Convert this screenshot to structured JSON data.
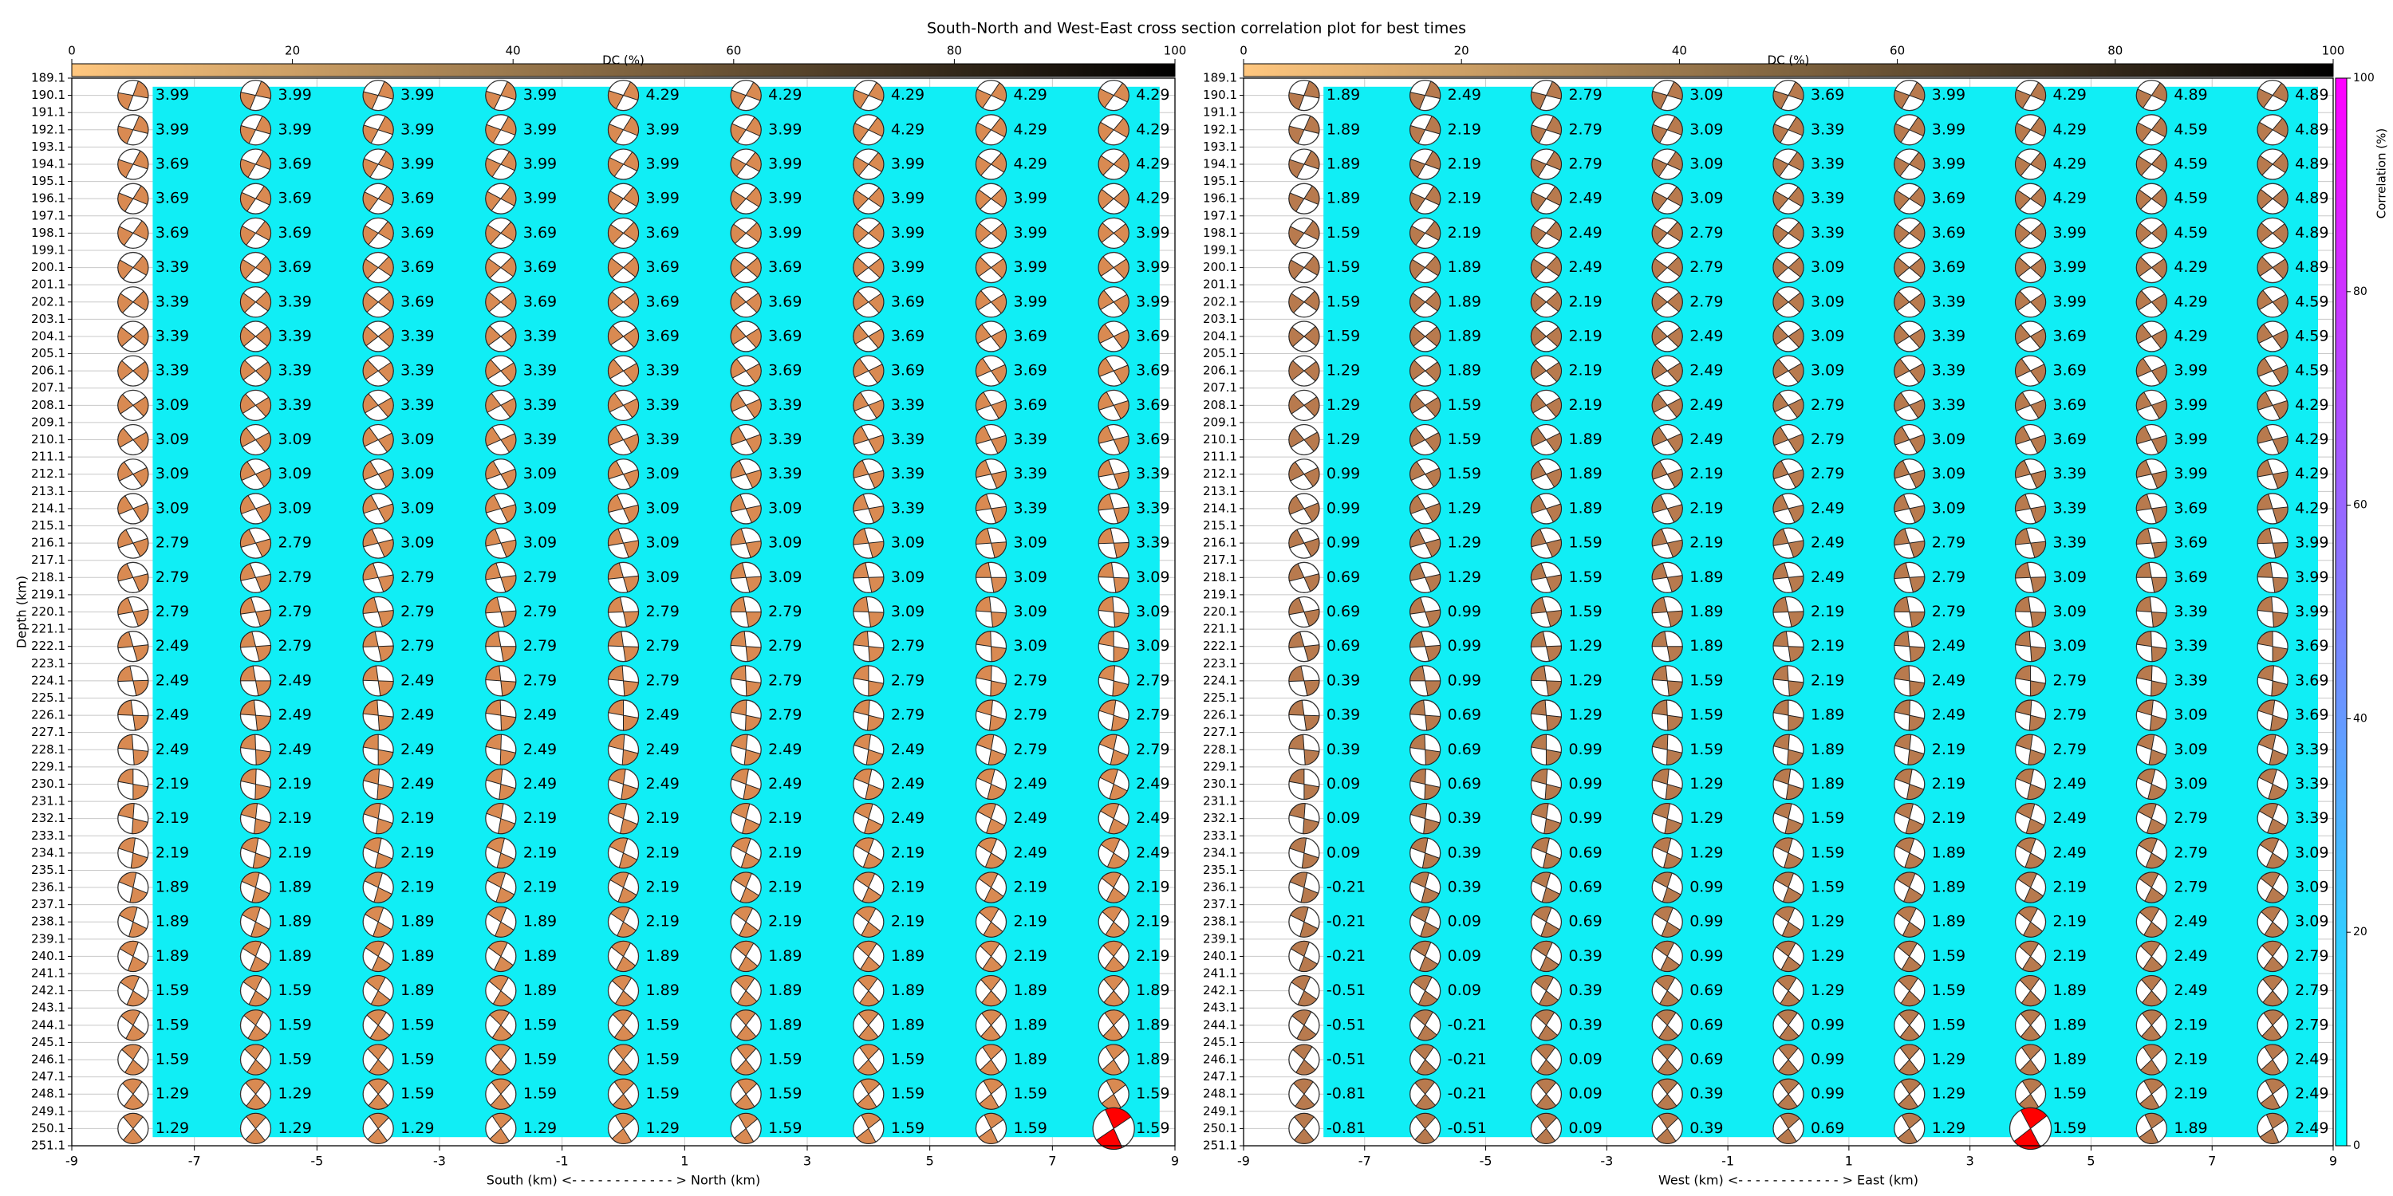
{
  "title": "South-North and West-East cross section correlation plot for best times",
  "correlation_colorbar": {
    "label": "Correlation (%)",
    "lim": [
      0,
      100
    ],
    "ticks": [
      0,
      20,
      40,
      60,
      80,
      100
    ],
    "colors": [
      "#00ffff",
      "#ff00ff"
    ]
  },
  "chart_data": [
    {
      "type": "cross_section",
      "x_label": "South (km) <- - - - - - - - - - - - > North (km)",
      "y_label": "Depth (km)",
      "xlim": [
        -9,
        9
      ],
      "xticks": [
        -9,
        -7,
        -5,
        -3,
        -1,
        1,
        3,
        5,
        7,
        9
      ],
      "ylim": [
        189.1,
        251.1
      ],
      "y_inverted": true,
      "yticks": [
        189.1,
        190.1,
        191.1,
        192.1,
        193.1,
        194.1,
        195.1,
        196.1,
        197.1,
        198.1,
        199.1,
        200.1,
        201.1,
        202.1,
        203.1,
        204.1,
        205.1,
        206.1,
        207.1,
        208.1,
        209.1,
        210.1,
        211.1,
        212.1,
        213.1,
        214.1,
        215.1,
        216.1,
        217.1,
        218.1,
        219.1,
        220.1,
        221.1,
        222.1,
        223.1,
        224.1,
        225.1,
        226.1,
        227.1,
        228.1,
        229.1,
        230.1,
        231.1,
        232.1,
        233.1,
        234.1,
        235.1,
        236.1,
        237.1,
        238.1,
        239.1,
        240.1,
        241.1,
        242.1,
        243.1,
        244.1,
        245.1,
        246.1,
        247.1,
        248.1,
        249.1,
        250.1,
        251.1
      ],
      "grid": true,
      "field_color": "#10eef5",
      "ball_color": "#d98a52",
      "best_color": "#ff0000",
      "best": {
        "x": 8,
        "depth": 250.1
      },
      "dc_colorbar": {
        "label": "DC (%)",
        "lim": [
          0,
          100
        ],
        "ticks": [
          0,
          20,
          40,
          60,
          80,
          100
        ],
        "colors": [
          "#ffc77f",
          "#000000"
        ]
      },
      "columns": [
        -8,
        -6,
        -4,
        -2,
        0,
        2,
        4,
        6,
        8
      ],
      "depths": [
        190.1,
        192.1,
        194.1,
        196.1,
        198.1,
        200.1,
        202.1,
        204.1,
        206.1,
        208.1,
        210.1,
        212.1,
        214.1,
        216.1,
        218.1,
        220.1,
        222.1,
        224.1,
        226.1,
        228.1,
        230.1,
        232.1,
        234.1,
        236.1,
        238.1,
        240.1,
        242.1,
        244.1,
        246.1,
        248.1,
        250.1
      ],
      "times": [
        [
          3.99,
          3.99,
          3.99,
          3.99,
          4.29,
          4.29,
          4.29,
          4.29,
          4.29
        ],
        [
          3.99,
          3.99,
          3.99,
          3.99,
          3.99,
          3.99,
          4.29,
          4.29,
          4.29
        ],
        [
          3.69,
          3.69,
          3.99,
          3.99,
          3.99,
          3.99,
          3.99,
          4.29,
          4.29
        ],
        [
          3.69,
          3.69,
          3.69,
          3.99,
          3.99,
          3.99,
          3.99,
          3.99,
          4.29
        ],
        [
          3.69,
          3.69,
          3.69,
          3.69,
          3.69,
          3.99,
          3.99,
          3.99,
          3.99
        ],
        [
          3.39,
          3.69,
          3.69,
          3.69,
          3.69,
          3.69,
          3.99,
          3.99,
          3.99
        ],
        [
          3.39,
          3.39,
          3.69,
          3.69,
          3.69,
          3.69,
          3.69,
          3.99,
          3.99
        ],
        [
          3.39,
          3.39,
          3.39,
          3.39,
          3.69,
          3.69,
          3.69,
          3.69,
          3.69
        ],
        [
          3.39,
          3.39,
          3.39,
          3.39,
          3.39,
          3.69,
          3.69,
          3.69,
          3.69
        ],
        [
          3.09,
          3.39,
          3.39,
          3.39,
          3.39,
          3.39,
          3.39,
          3.69,
          3.69
        ],
        [
          3.09,
          3.09,
          3.09,
          3.39,
          3.39,
          3.39,
          3.39,
          3.39,
          3.69
        ],
        [
          3.09,
          3.09,
          3.09,
          3.09,
          3.09,
          3.39,
          3.39,
          3.39,
          3.39
        ],
        [
          3.09,
          3.09,
          3.09,
          3.09,
          3.09,
          3.09,
          3.39,
          3.39,
          3.39
        ],
        [
          2.79,
          2.79,
          3.09,
          3.09,
          3.09,
          3.09,
          3.09,
          3.09,
          3.39
        ],
        [
          2.79,
          2.79,
          2.79,
          2.79,
          3.09,
          3.09,
          3.09,
          3.09,
          3.09
        ],
        [
          2.79,
          2.79,
          2.79,
          2.79,
          2.79,
          2.79,
          3.09,
          3.09,
          3.09
        ],
        [
          2.49,
          2.79,
          2.79,
          2.79,
          2.79,
          2.79,
          2.79,
          3.09,
          3.09
        ],
        [
          2.49,
          2.49,
          2.49,
          2.79,
          2.79,
          2.79,
          2.79,
          2.79,
          2.79
        ],
        [
          2.49,
          2.49,
          2.49,
          2.49,
          2.49,
          2.79,
          2.79,
          2.79,
          2.79
        ],
        [
          2.49,
          2.49,
          2.49,
          2.49,
          2.49,
          2.49,
          2.49,
          2.79,
          2.79
        ],
        [
          2.19,
          2.19,
          2.49,
          2.49,
          2.49,
          2.49,
          2.49,
          2.49,
          2.49
        ],
        [
          2.19,
          2.19,
          2.19,
          2.19,
          2.19,
          2.19,
          2.49,
          2.49,
          2.49
        ],
        [
          2.19,
          2.19,
          2.19,
          2.19,
          2.19,
          2.19,
          2.19,
          2.49,
          2.49
        ],
        [
          1.89,
          1.89,
          2.19,
          2.19,
          2.19,
          2.19,
          2.19,
          2.19,
          2.19
        ],
        [
          1.89,
          1.89,
          1.89,
          1.89,
          2.19,
          2.19,
          2.19,
          2.19,
          2.19
        ],
        [
          1.89,
          1.89,
          1.89,
          1.89,
          1.89,
          1.89,
          1.89,
          2.19,
          2.19
        ],
        [
          1.59,
          1.59,
          1.89,
          1.89,
          1.89,
          1.89,
          1.89,
          1.89,
          1.89
        ],
        [
          1.59,
          1.59,
          1.59,
          1.59,
          1.59,
          1.89,
          1.89,
          1.89,
          1.89
        ],
        [
          1.59,
          1.59,
          1.59,
          1.59,
          1.59,
          1.59,
          1.59,
          1.89,
          1.89
        ],
        [
          1.29,
          1.29,
          1.59,
          1.59,
          1.59,
          1.59,
          1.59,
          1.59,
          1.59
        ],
        [
          1.29,
          1.29,
          1.29,
          1.29,
          1.29,
          1.59,
          1.59,
          1.59,
          1.59
        ]
      ]
    },
    {
      "type": "cross_section",
      "x_label": "West (km) <- - - - - - - - - - - - > East (km)",
      "xlim": [
        -9,
        9
      ],
      "xticks": [
        -9,
        -7,
        -5,
        -3,
        -1,
        1,
        3,
        5,
        7,
        9
      ],
      "ylim": [
        189.1,
        251.1
      ],
      "y_inverted": true,
      "yticks": [
        189.1,
        190.1,
        191.1,
        192.1,
        193.1,
        194.1,
        195.1,
        196.1,
        197.1,
        198.1,
        199.1,
        200.1,
        201.1,
        202.1,
        203.1,
        204.1,
        205.1,
        206.1,
        207.1,
        208.1,
        209.1,
        210.1,
        211.1,
        212.1,
        213.1,
        214.1,
        215.1,
        216.1,
        217.1,
        218.1,
        219.1,
        220.1,
        221.1,
        222.1,
        223.1,
        224.1,
        225.1,
        226.1,
        227.1,
        228.1,
        229.1,
        230.1,
        231.1,
        232.1,
        233.1,
        234.1,
        235.1,
        236.1,
        237.1,
        238.1,
        239.1,
        240.1,
        241.1,
        242.1,
        243.1,
        244.1,
        245.1,
        246.1,
        247.1,
        248.1,
        249.1,
        250.1,
        251.1
      ],
      "grid": true,
      "field_color": "#10eef5",
      "ball_color": "#b87a4e",
      "best_color": "#ff0000",
      "best": {
        "x": 4,
        "depth": 250.1
      },
      "dc_colorbar": {
        "label": "DC (%)",
        "lim": [
          0,
          100
        ],
        "ticks": [
          0,
          20,
          40,
          60,
          80,
          100
        ],
        "colors": [
          "#ffc77f",
          "#000000"
        ]
      },
      "columns": [
        -8,
        -6,
        -4,
        -2,
        0,
        2,
        4,
        6,
        8
      ],
      "depths": [
        190.1,
        192.1,
        194.1,
        196.1,
        198.1,
        200.1,
        202.1,
        204.1,
        206.1,
        208.1,
        210.1,
        212.1,
        214.1,
        216.1,
        218.1,
        220.1,
        222.1,
        224.1,
        226.1,
        228.1,
        230.1,
        232.1,
        234.1,
        236.1,
        238.1,
        240.1,
        242.1,
        244.1,
        246.1,
        248.1,
        250.1
      ],
      "times": [
        [
          1.89,
          2.49,
          2.79,
          3.09,
          3.69,
          3.99,
          4.29,
          4.89,
          4.89
        ],
        [
          1.89,
          2.19,
          2.79,
          3.09,
          3.39,
          3.99,
          4.29,
          4.59,
          4.89
        ],
        [
          1.89,
          2.19,
          2.79,
          3.09,
          3.39,
          3.99,
          4.29,
          4.59,
          4.89
        ],
        [
          1.89,
          2.19,
          2.49,
          3.09,
          3.39,
          3.69,
          4.29,
          4.59,
          4.89
        ],
        [
          1.59,
          2.19,
          2.49,
          2.79,
          3.39,
          3.69,
          3.99,
          4.59,
          4.89
        ],
        [
          1.59,
          1.89,
          2.49,
          2.79,
          3.09,
          3.69,
          3.99,
          4.29,
          4.89
        ],
        [
          1.59,
          1.89,
          2.19,
          2.79,
          3.09,
          3.39,
          3.99,
          4.29,
          4.59
        ],
        [
          1.59,
          1.89,
          2.19,
          2.49,
          3.09,
          3.39,
          3.69,
          4.29,
          4.59
        ],
        [
          1.29,
          1.89,
          2.19,
          2.49,
          3.09,
          3.39,
          3.69,
          3.99,
          4.59
        ],
        [
          1.29,
          1.59,
          2.19,
          2.49,
          2.79,
          3.39,
          3.69,
          3.99,
          4.29
        ],
        [
          1.29,
          1.59,
          1.89,
          2.49,
          2.79,
          3.09,
          3.69,
          3.99,
          4.29
        ],
        [
          0.99,
          1.59,
          1.89,
          2.19,
          2.79,
          3.09,
          3.39,
          3.99,
          4.29
        ],
        [
          0.99,
          1.29,
          1.89,
          2.19,
          2.49,
          3.09,
          3.39,
          3.69,
          4.29
        ],
        [
          0.99,
          1.29,
          1.59,
          2.19,
          2.49,
          2.79,
          3.39,
          3.69,
          3.99
        ],
        [
          0.69,
          1.29,
          1.59,
          1.89,
          2.49,
          2.79,
          3.09,
          3.69,
          3.99
        ],
        [
          0.69,
          0.99,
          1.59,
          1.89,
          2.19,
          2.79,
          3.09,
          3.39,
          3.99
        ],
        [
          0.69,
          0.99,
          1.29,
          1.89,
          2.19,
          2.49,
          3.09,
          3.39,
          3.69
        ],
        [
          0.39,
          0.99,
          1.29,
          1.59,
          2.19,
          2.49,
          2.79,
          3.39,
          3.69
        ],
        [
          0.39,
          0.69,
          1.29,
          1.59,
          1.89,
          2.49,
          2.79,
          3.09,
          3.69
        ],
        [
          0.39,
          0.69,
          0.99,
          1.59,
          1.89,
          2.19,
          2.79,
          3.09,
          3.39
        ],
        [
          0.09,
          0.69,
          0.99,
          1.29,
          1.89,
          2.19,
          2.49,
          3.09,
          3.39
        ],
        [
          0.09,
          0.39,
          0.99,
          1.29,
          1.59,
          2.19,
          2.49,
          2.79,
          3.39
        ],
        [
          0.09,
          0.39,
          0.69,
          1.29,
          1.59,
          1.89,
          2.49,
          2.79,
          3.09
        ],
        [
          -0.21,
          0.39,
          0.69,
          0.99,
          1.59,
          1.89,
          2.19,
          2.79,
          3.09
        ],
        [
          -0.21,
          0.09,
          0.69,
          0.99,
          1.29,
          1.89,
          2.19,
          2.49,
          3.09
        ],
        [
          -0.21,
          0.09,
          0.39,
          0.99,
          1.29,
          1.59,
          2.19,
          2.49,
          2.79
        ],
        [
          -0.51,
          0.09,
          0.39,
          0.69,
          1.29,
          1.59,
          1.89,
          2.49,
          2.79
        ],
        [
          -0.51,
          -0.21,
          0.39,
          0.69,
          0.99,
          1.59,
          1.89,
          2.19,
          2.79
        ],
        [
          -0.51,
          -0.21,
          0.09,
          0.69,
          0.99,
          1.29,
          1.89,
          2.19,
          2.49
        ],
        [
          -0.81,
          -0.21,
          0.09,
          0.39,
          0.99,
          1.29,
          1.59,
          2.19,
          2.49
        ],
        [
          -0.81,
          -0.51,
          0.09,
          0.39,
          0.69,
          1.29,
          1.59,
          1.89,
          2.49
        ]
      ]
    }
  ]
}
